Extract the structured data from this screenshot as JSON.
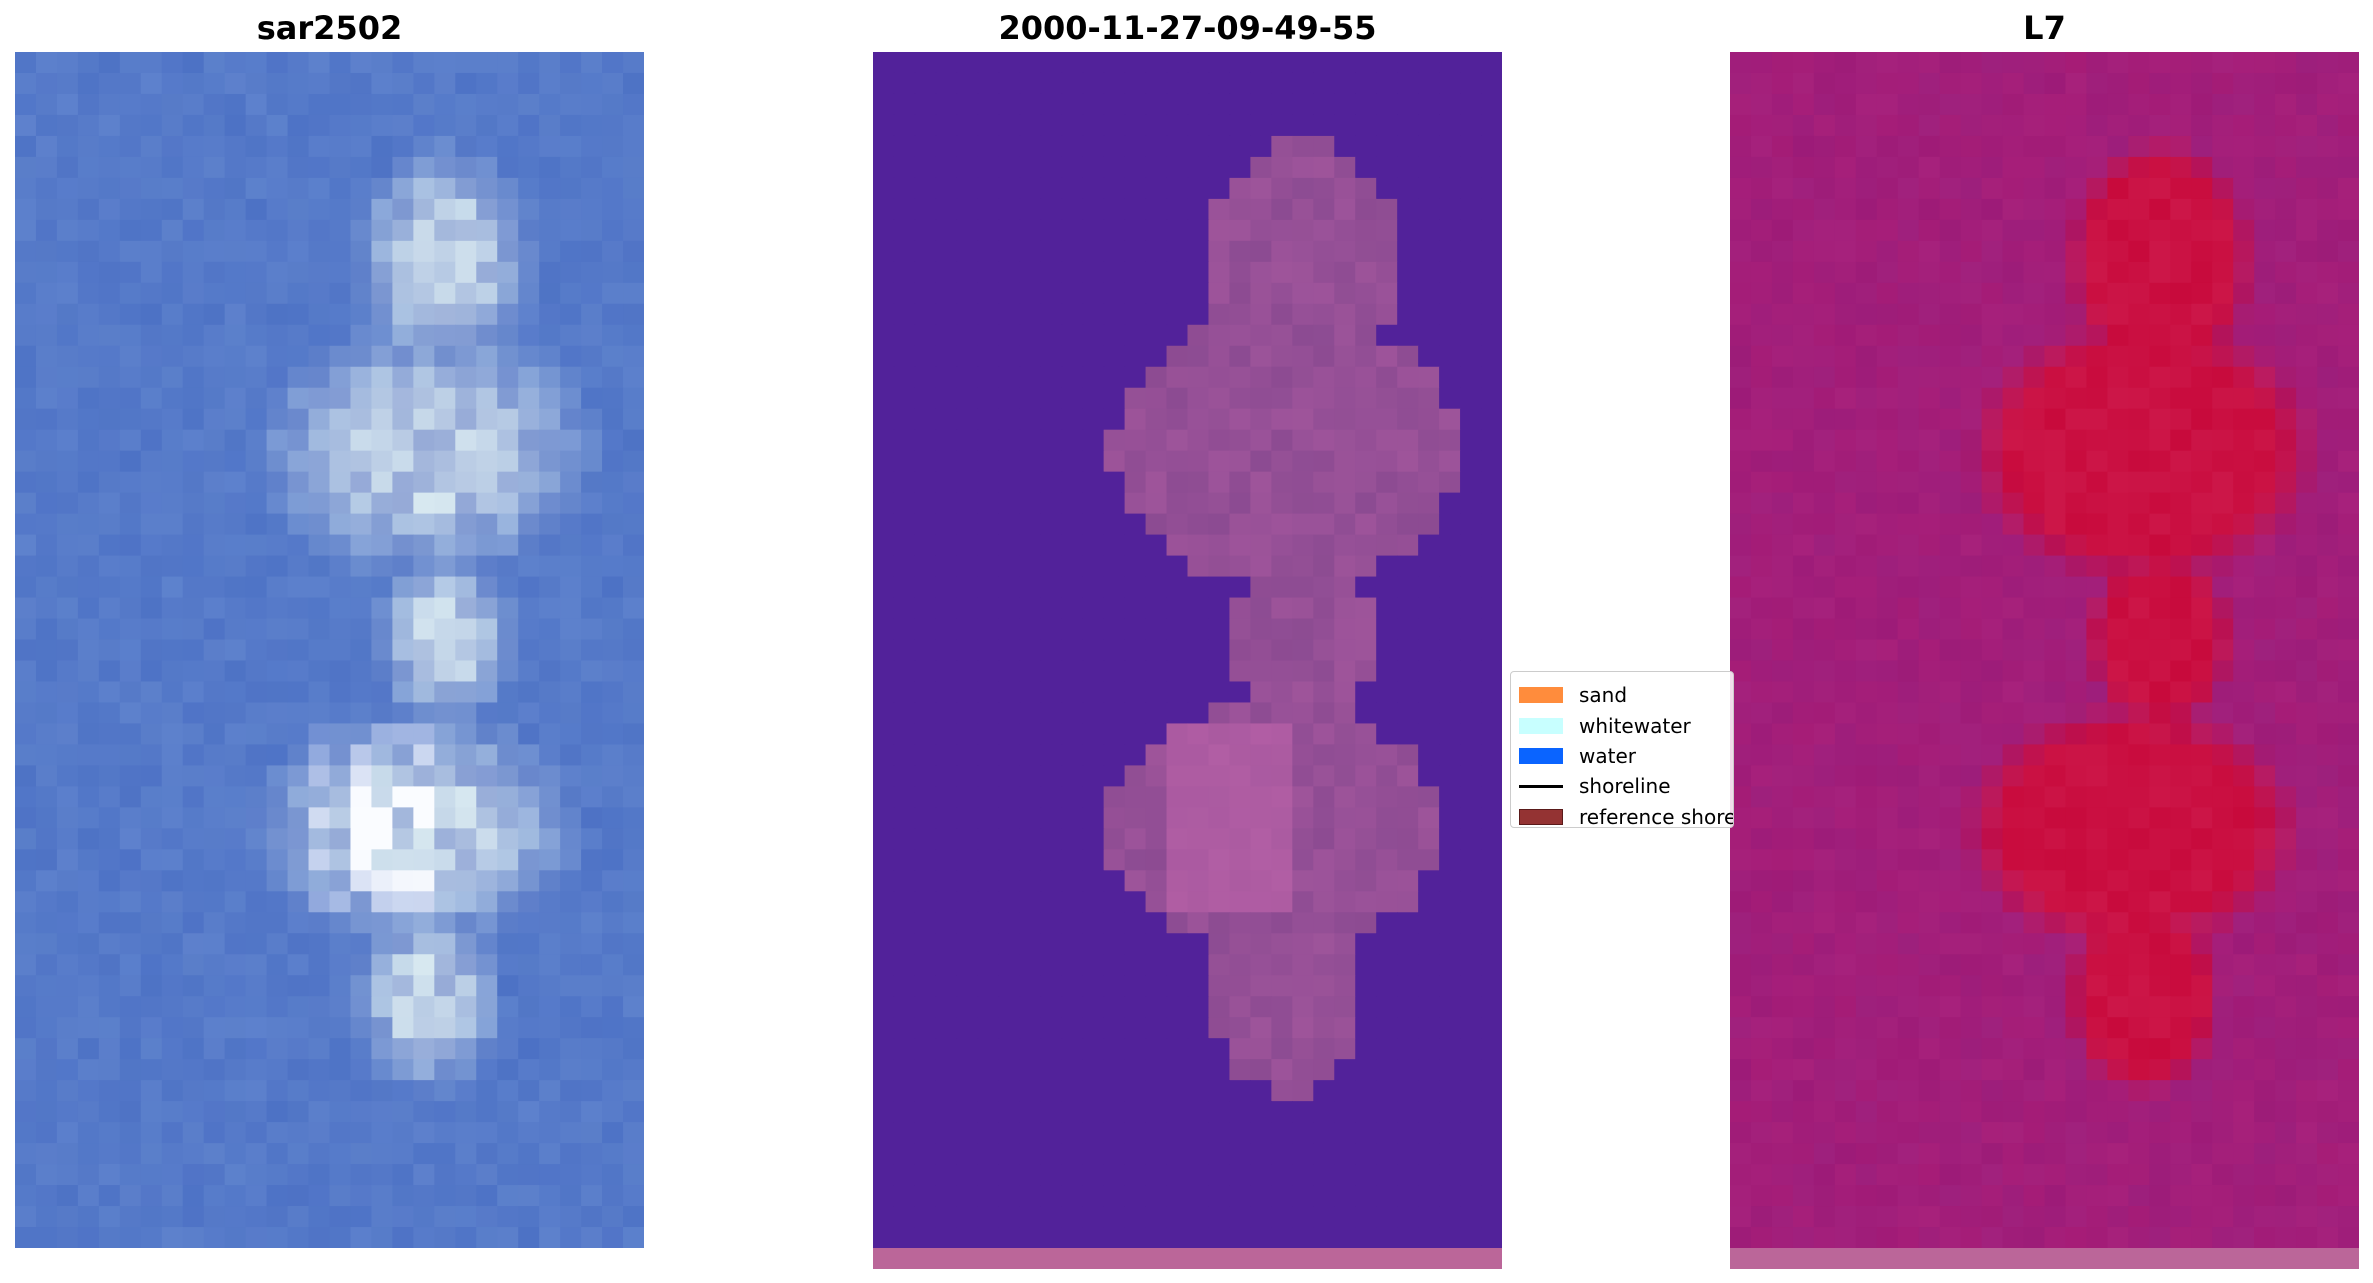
{
  "panels": [
    {
      "title": "sar2502",
      "kind": "rgb"
    },
    {
      "title": "2000-11-27-09-49-55",
      "kind": "classified"
    },
    {
      "title": "L7",
      "kind": "index"
    }
  ],
  "legend": {
    "items": [
      {
        "label": "sand",
        "color": "#ff8c3c",
        "type": "swatch"
      },
      {
        "label": "whitewater",
        "color": "#c8ffff",
        "type": "swatch"
      },
      {
        "label": "water",
        "color": "#0a64ff",
        "type": "swatch"
      },
      {
        "label": "shoreline",
        "color": "#000000",
        "type": "line"
      },
      {
        "label": "reference shoreline",
        "color": "#943333",
        "type": "swatch"
      }
    ]
  },
  "colors": {
    "rgb_water": "#3a63c0",
    "classified_water": "#52229a",
    "classified_land": "#8c4b92",
    "index_bg": "#8a2aa5",
    "index_land": "#c80a3c",
    "bottom_strip": "#bb6699"
  }
}
